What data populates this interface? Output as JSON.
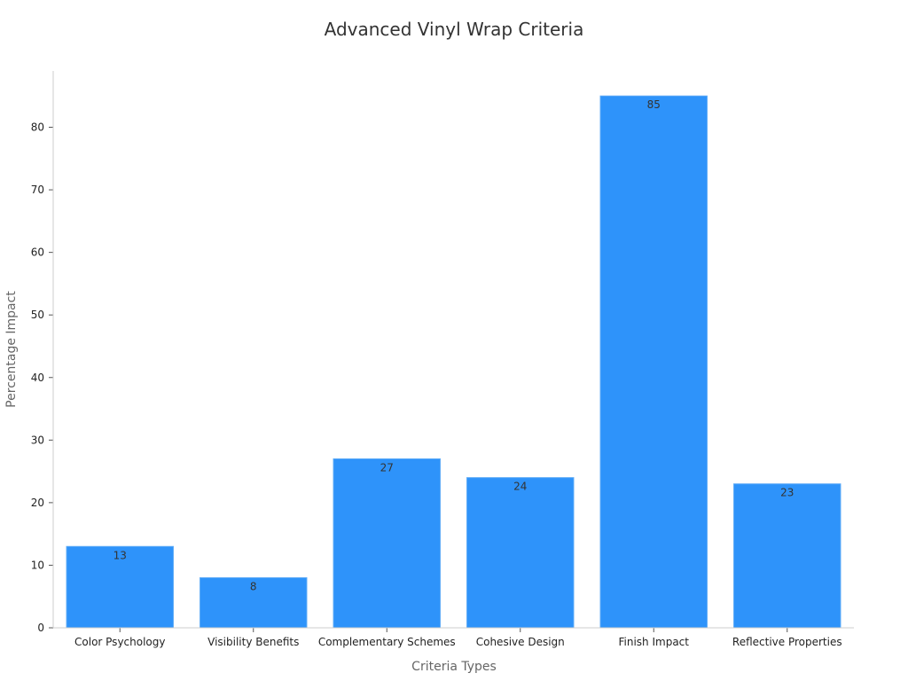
{
  "chart_data": {
    "type": "bar",
    "title": "Advanced Vinyl Wrap Criteria",
    "xlabel": "Criteria Types",
    "ylabel": "Percentage Impact",
    "categories": [
      "Color Psychology",
      "Visibility Benefits",
      "Complementary Schemes",
      "Cohesive Design",
      "Finish Impact",
      "Reflective Properties"
    ],
    "values": [
      13,
      8,
      27,
      24,
      85,
      23
    ],
    "yticks": [
      0,
      10,
      20,
      30,
      40,
      50,
      60,
      70,
      80
    ],
    "ylim": [
      0,
      89
    ],
    "bar_color": "#2e93fa",
    "grid": false,
    "legend": "none"
  }
}
